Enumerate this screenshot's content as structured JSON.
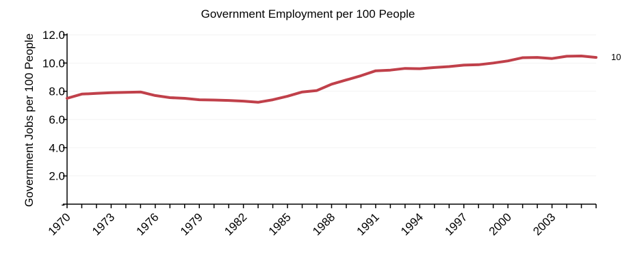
{
  "chart_data": {
    "type": "line",
    "title": "Government Employment per 100 People",
    "xlabel": "",
    "ylabel": "Government Jobs per 100 People",
    "ylim": [
      0,
      12
    ],
    "xlim": [
      1970,
      2006
    ],
    "y_tick_labels": [
      "-",
      "2.0",
      "4.0",
      "6.0",
      "8.0",
      "10.0",
      "12.0"
    ],
    "y_tick_values": [
      0,
      2,
      4,
      6,
      8,
      10,
      12
    ],
    "x_tick_labels": [
      "1970",
      "1973",
      "1976",
      "1979",
      "1982",
      "1985",
      "1988",
      "1991",
      "1994",
      "1997",
      "2000",
      "2003"
    ],
    "x_tick_values": [
      1970,
      1973,
      1976,
      1979,
      1982,
      1985,
      1988,
      1991,
      1994,
      1997,
      2000,
      2003
    ],
    "grid": false,
    "end_label": "10",
    "series": [
      {
        "color": "#c0404a",
        "x": [
          1970,
          1971,
          1972,
          1973,
          1974,
          1975,
          1976,
          1977,
          1978,
          1979,
          1980,
          1981,
          1982,
          1983,
          1984,
          1985,
          1986,
          1987,
          1988,
          1989,
          1990,
          1991,
          1992,
          1993,
          1994,
          1995,
          1996,
          1997,
          1998,
          1999,
          2000,
          2001,
          2002,
          2003,
          2004,
          2005,
          2006
        ],
        "values": [
          7.5,
          7.8,
          7.85,
          7.9,
          7.92,
          7.95,
          7.7,
          7.55,
          7.5,
          7.4,
          7.38,
          7.35,
          7.3,
          7.22,
          7.4,
          7.65,
          7.95,
          8.05,
          8.5,
          8.8,
          9.1,
          9.45,
          9.5,
          9.62,
          9.6,
          9.68,
          9.75,
          9.85,
          9.88,
          10.0,
          10.15,
          10.38,
          10.4,
          10.32,
          10.48,
          10.5,
          10.4
        ]
      }
    ]
  }
}
